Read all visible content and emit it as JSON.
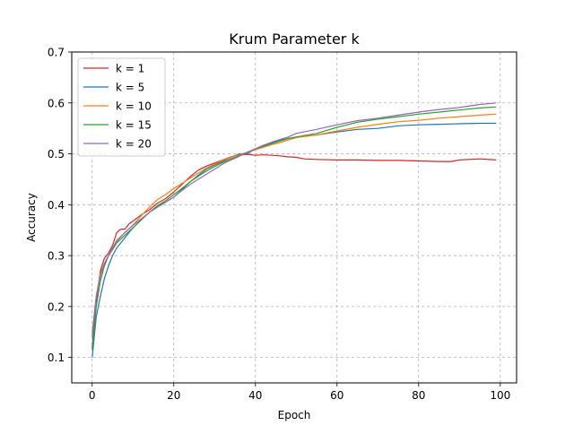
{
  "chart_data": {
    "type": "line",
    "title": "Krum Parameter k",
    "xlabel": "Epoch",
    "ylabel": "Accuracy",
    "xlim": [
      -5,
      104
    ],
    "ylim": [
      0.05,
      0.7
    ],
    "xticks": [
      0,
      20,
      40,
      60,
      80,
      100
    ],
    "yticks": [
      0.1,
      0.2,
      0.3,
      0.4,
      0.5,
      0.6,
      0.7
    ],
    "grid": true,
    "legend_position": "top-left",
    "series": [
      {
        "name": "k = 1",
        "color": "#d62728",
        "x": [
          0,
          1,
          2,
          3,
          4,
          5,
          6,
          7,
          8,
          9,
          10,
          12,
          14,
          16,
          18,
          20,
          22,
          24,
          26,
          28,
          30,
          32,
          34,
          36,
          38,
          40,
          42,
          44,
          46,
          48,
          50,
          52,
          55,
          60,
          65,
          70,
          75,
          80,
          85,
          88,
          90,
          95,
          99
        ],
        "y": [
          0.12,
          0.21,
          0.27,
          0.295,
          0.305,
          0.32,
          0.345,
          0.352,
          0.352,
          0.362,
          0.368,
          0.38,
          0.39,
          0.403,
          0.412,
          0.425,
          0.44,
          0.455,
          0.468,
          0.476,
          0.482,
          0.488,
          0.494,
          0.498,
          0.499,
          0.497,
          0.498,
          0.497,
          0.496,
          0.494,
          0.493,
          0.49,
          0.489,
          0.488,
          0.488,
          0.487,
          0.487,
          0.486,
          0.485,
          0.485,
          0.488,
          0.49,
          0.488
        ]
      },
      {
        "name": "k = 5",
        "color": "#1f77b4",
        "x": [
          0,
          1,
          2,
          3,
          4,
          5,
          6,
          8,
          10,
          12,
          14,
          16,
          18,
          20,
          22,
          24,
          26,
          28,
          30,
          32,
          34,
          36,
          38,
          40,
          42,
          44,
          46,
          48,
          50,
          55,
          60,
          65,
          70,
          75,
          80,
          85,
          90,
          95,
          99
        ],
        "y": [
          0.1,
          0.18,
          0.22,
          0.255,
          0.28,
          0.3,
          0.315,
          0.335,
          0.355,
          0.37,
          0.385,
          0.398,
          0.405,
          0.415,
          0.43,
          0.445,
          0.458,
          0.47,
          0.478,
          0.485,
          0.493,
          0.5,
          0.5,
          0.51,
          0.517,
          0.522,
          0.527,
          0.53,
          0.533,
          0.537,
          0.543,
          0.548,
          0.55,
          0.555,
          0.557,
          0.558,
          0.559,
          0.56,
          0.56
        ]
      },
      {
        "name": "k = 10",
        "color": "#ff7f0e",
        "x": [
          0,
          1,
          2,
          3,
          4,
          5,
          6,
          8,
          10,
          12,
          14,
          16,
          18,
          20,
          22,
          24,
          26,
          28,
          30,
          32,
          34,
          36,
          38,
          40,
          42,
          44,
          46,
          48,
          50,
          55,
          60,
          65,
          70,
          75,
          80,
          85,
          90,
          95,
          99
        ],
        "y": [
          0.15,
          0.22,
          0.265,
          0.285,
          0.3,
          0.315,
          0.33,
          0.345,
          0.36,
          0.378,
          0.395,
          0.41,
          0.42,
          0.432,
          0.442,
          0.452,
          0.462,
          0.472,
          0.48,
          0.487,
          0.493,
          0.498,
          0.503,
          0.508,
          0.513,
          0.518,
          0.522,
          0.527,
          0.532,
          0.537,
          0.545,
          0.552,
          0.558,
          0.563,
          0.566,
          0.57,
          0.573,
          0.576,
          0.578
        ]
      },
      {
        "name": "k = 15",
        "color": "#2ca02c",
        "x": [
          0,
          1,
          2,
          3,
          4,
          5,
          6,
          8,
          10,
          12,
          14,
          16,
          18,
          20,
          22,
          24,
          26,
          28,
          30,
          32,
          34,
          36,
          38,
          40,
          42,
          44,
          46,
          48,
          50,
          55,
          60,
          65,
          70,
          75,
          80,
          85,
          90,
          95,
          99
        ],
        "y": [
          0.115,
          0.2,
          0.25,
          0.28,
          0.3,
          0.312,
          0.325,
          0.34,
          0.355,
          0.37,
          0.385,
          0.398,
          0.408,
          0.42,
          0.432,
          0.445,
          0.456,
          0.466,
          0.475,
          0.483,
          0.49,
          0.496,
          0.503,
          0.51,
          0.515,
          0.52,
          0.525,
          0.53,
          0.533,
          0.54,
          0.552,
          0.562,
          0.568,
          0.573,
          0.578,
          0.582,
          0.586,
          0.59,
          0.592
        ]
      },
      {
        "name": "k = 20",
        "color": "#9467bd",
        "x": [
          0,
          1,
          2,
          3,
          4,
          5,
          6,
          8,
          10,
          12,
          14,
          16,
          18,
          20,
          22,
          24,
          26,
          28,
          30,
          32,
          34,
          36,
          38,
          40,
          42,
          44,
          46,
          48,
          50,
          55,
          60,
          65,
          70,
          75,
          80,
          85,
          90,
          95,
          99
        ],
        "y": [
          0.14,
          0.22,
          0.26,
          0.285,
          0.3,
          0.315,
          0.328,
          0.345,
          0.36,
          0.372,
          0.385,
          0.395,
          0.405,
          0.415,
          0.428,
          0.44,
          0.45,
          0.46,
          0.47,
          0.48,
          0.488,
          0.495,
          0.503,
          0.51,
          0.517,
          0.523,
          0.528,
          0.533,
          0.54,
          0.548,
          0.557,
          0.565,
          0.57,
          0.576,
          0.582,
          0.587,
          0.591,
          0.597,
          0.6
        ]
      }
    ]
  }
}
